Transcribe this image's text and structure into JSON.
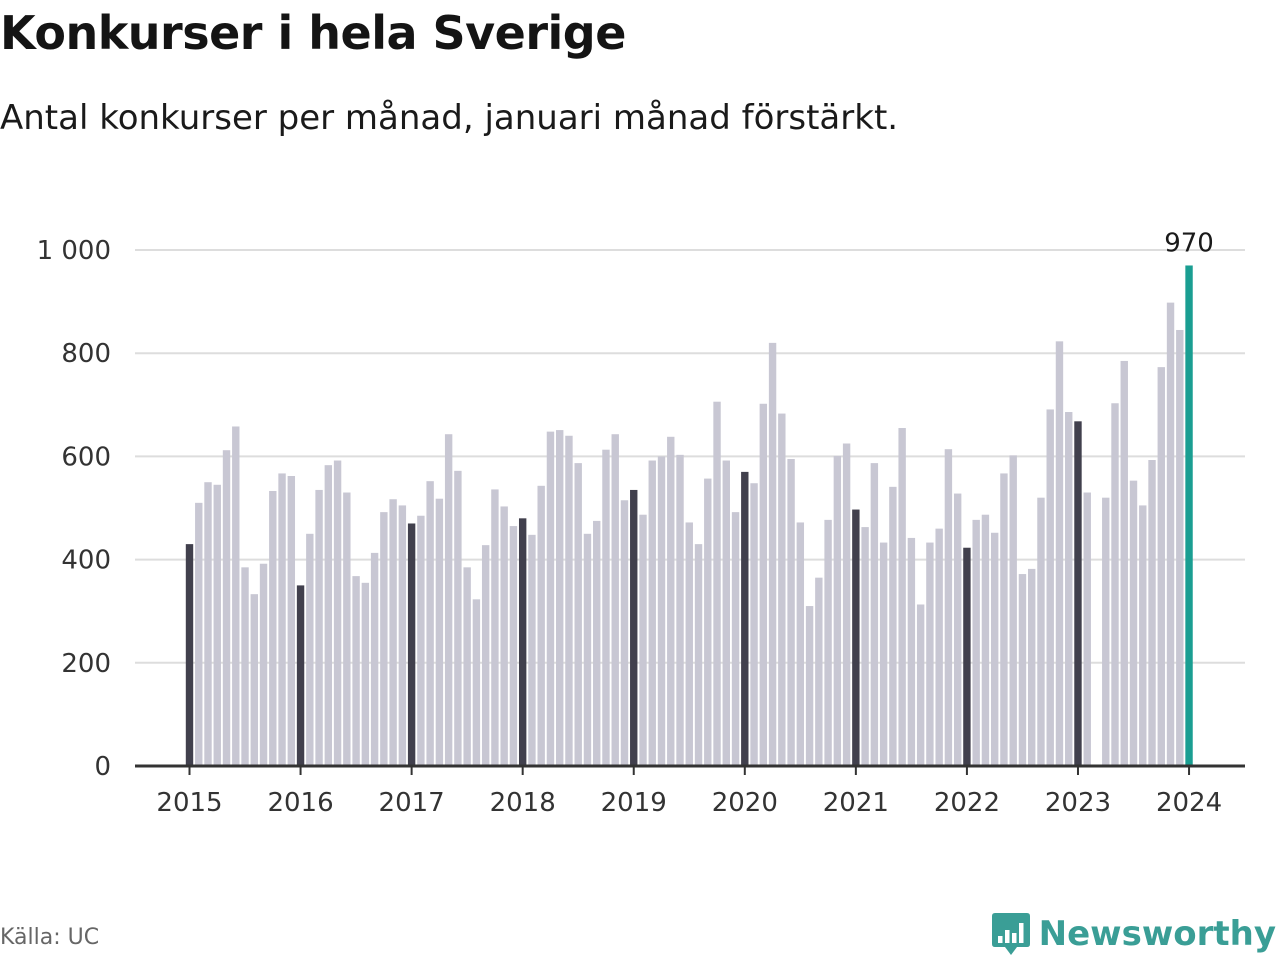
{
  "header": {
    "title": "Konkurser i hela Sverige",
    "subtitle": "Antal konkurser per månad, januari månad förstärkt."
  },
  "footer": {
    "source": "Källa: UC",
    "brand": "Newsworthy"
  },
  "colors": {
    "bar": "#c8c7d3",
    "january_bar": "#41404d",
    "latest_bar": "#1a9e92",
    "gridline": "#dddddd",
    "axis": "#333333",
    "brand": "#3a9e96"
  },
  "chart_data": {
    "type": "bar",
    "title": "Konkurser i hela Sverige",
    "subtitle": "Antal konkurser per månad, januari månad förstärkt.",
    "ylim": [
      0,
      1000
    ],
    "yticks": [
      0,
      200,
      400,
      600,
      800,
      1000
    ],
    "ytick_labels": [
      "0",
      "200",
      "400",
      "600",
      "800",
      "1 000"
    ],
    "xtick_labels": [
      "2015",
      "2016",
      "2017",
      "2018",
      "2019",
      "2020",
      "2021",
      "2022",
      "2023",
      "2024"
    ],
    "grid": true,
    "legend": "none",
    "start": "2015-01",
    "highlight": "january",
    "latest_label": "970",
    "series": [
      {
        "values": [
          430,
          510,
          550,
          545,
          612,
          658,
          385,
          333,
          392,
          533,
          567,
          562,
          350,
          450,
          535,
          583,
          592,
          530,
          368,
          355,
          413,
          492,
          517,
          505,
          470,
          485,
          552,
          518,
          643,
          572,
          385,
          323,
          428,
          536,
          503,
          465,
          480,
          448,
          543,
          648,
          651,
          640,
          587,
          450,
          475,
          613,
          643,
          515,
          535,
          487,
          592,
          600,
          638,
          603,
          472,
          430,
          557,
          706,
          592,
          492,
          570,
          548,
          702,
          820,
          683,
          595,
          472,
          310,
          365,
          477,
          601,
          625,
          497,
          463,
          587,
          433,
          541,
          655,
          442,
          313,
          433,
          460,
          614,
          528,
          423,
          477,
          487,
          452,
          567,
          602,
          372,
          382,
          520,
          691,
          823,
          686,
          668,
          530,
          null,
          520,
          703,
          785,
          553,
          505,
          593,
          773,
          898,
          845,
          970
        ]
      }
    ]
  }
}
